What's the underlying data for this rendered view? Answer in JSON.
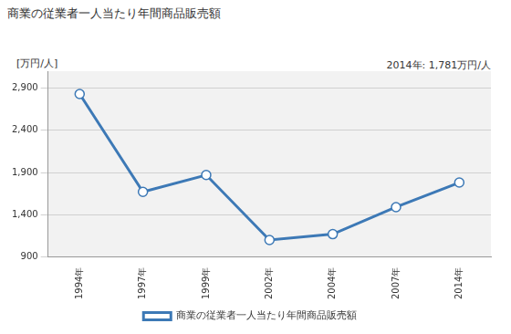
{
  "chart_data": {
    "type": "line",
    "title": "商業の従業者一人当たり年間商品販売額",
    "ylabel": "[万円/人]",
    "annotations": [
      "2014年: 1,781万円/人"
    ],
    "categories": [
      "1994年",
      "1997年",
      "1999年",
      "2002年",
      "2004年",
      "2007年",
      "2014年"
    ],
    "series": [
      {
        "name": "商業の従業者一人当たり年間商品販売額",
        "color": "#3d79b6",
        "values": [
          2830,
          1670,
          1870,
          1100,
          1170,
          1490,
          1781
        ],
        "marker": "circle",
        "line_style": "solid"
      }
    ],
    "ylim": [
      900,
      3100
    ],
    "yticks": [
      900,
      {
        "value": 1400,
        "label": "1,400"
      },
      {
        "value": 1900,
        "label": "1,900"
      },
      {
        "value": 2400,
        "label": "2,400"
      },
      {
        "value": 2900,
        "label": "2,900"
      }
    ],
    "grid": true,
    "legend": "bottom"
  }
}
